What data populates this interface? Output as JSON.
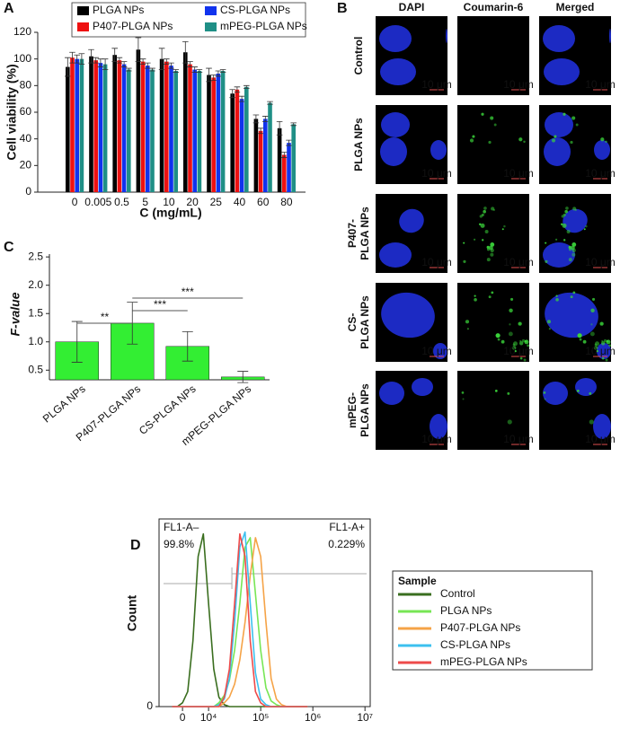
{
  "chart_data": [
    {
      "type": "bar",
      "panel_label": "A",
      "categories": [
        "0",
        "0.005",
        "0.5",
        "5",
        "10",
        "20",
        "25",
        "40",
        "60",
        "80"
      ],
      "series": [
        {
          "name": "PLGA NPs",
          "color": "#000000",
          "values": [
            94,
            102,
            103,
            107,
            100,
            105,
            88,
            74,
            55,
            48
          ],
          "errors": [
            7,
            5,
            5,
            9,
            8,
            8,
            5,
            3,
            3,
            5
          ]
        },
        {
          "name": "P407-PLGA NPs",
          "color": "#ee1111",
          "values": [
            101,
            99,
            99,
            98,
            98,
            96,
            86,
            77,
            46,
            28
          ],
          "errors": [
            4,
            2,
            2,
            2,
            2,
            2,
            2,
            2,
            2,
            2
          ]
        },
        {
          "name": "CS-PLGA NPs",
          "color": "#1133ee",
          "values": [
            100,
            97,
            96,
            95,
            95,
            92,
            89,
            70,
            55,
            37
          ],
          "errors": [
            3,
            3,
            2,
            2,
            2,
            2,
            2,
            2,
            2,
            2
          ]
        },
        {
          "name": "mPEG-PLGA NPs",
          "color": "#1f8f86",
          "values": [
            100,
            96,
            92,
            92,
            91,
            91,
            91,
            79,
            67,
            51
          ],
          "errors": [
            4,
            4,
            1,
            1,
            1,
            1,
            1,
            1,
            1,
            1
          ]
        }
      ],
      "xlabel": "C (mg/mL)",
      "ylabel": "Cell viability (%)",
      "ylim": [
        0,
        120
      ],
      "yticks": [
        0,
        20,
        40,
        60,
        80,
        100,
        120
      ]
    },
    {
      "type": "bar",
      "panel_label": "C",
      "categories": [
        "PLGA NPs",
        "P407-PLGA NPs",
        "CS-PLGA NPs",
        "mPEG-PLGA NPs"
      ],
      "values": [
        1.0,
        1.33,
        0.92,
        0.38
      ],
      "errors": [
        0.36,
        0.37,
        0.26,
        0.1
      ],
      "color": "#33ee33",
      "ylabel": "F-value",
      "ylim": [
        0.33,
        2.55
      ],
      "yticks": [
        0.5,
        {
          "value": 1.0,
          "label": "1.0"
        },
        1.5,
        {
          "value": 2.0,
          "label": "2.0"
        },
        2.5
      ],
      "significance": [
        {
          "label": "**",
          "between": [
            "PLGA NPs",
            "P407-PLGA NPs"
          ]
        },
        {
          "label": "***",
          "between": [
            "P407-PLGA NPs",
            "CS-PLGA NPs"
          ]
        },
        {
          "label": "***",
          "between": [
            "P407-PLGA NPs",
            "mPEG-PLGA NPs"
          ]
        }
      ]
    },
    {
      "type": "line",
      "panel_label": "D",
      "x": [
        -4000,
        -2000,
        0,
        2000,
        4000,
        6000,
        8000,
        10000,
        12600,
        15800,
        20000,
        25100,
        31600,
        39800,
        50100,
        63100,
        79400,
        100000,
        126000,
        158000,
        200000,
        251000,
        316000,
        398000,
        501000,
        631000,
        794000
      ],
      "series": [
        {
          "name": "Control",
          "color": "#3a6e1f",
          "values": [
            0,
            0,
            2,
            8,
            35,
            80,
            92,
            55,
            20,
            5,
            1,
            0,
            0,
            0,
            0,
            0,
            0,
            0,
            0,
            0,
            0,
            0,
            0,
            0,
            0,
            0,
            0
          ]
        },
        {
          "name": "PLGA NPs",
          "color": "#77e655",
          "values": [
            0,
            0,
            0,
            0,
            0,
            0,
            0,
            0,
            0,
            2,
            6,
            14,
            30,
            55,
            85,
            90,
            60,
            30,
            10,
            3,
            1,
            0,
            0,
            0,
            0,
            0,
            0
          ]
        },
        {
          "name": "P407-PLGA NPs",
          "color": "#f5a347",
          "values": [
            0,
            0,
            0,
            0,
            0,
            0,
            0,
            0,
            0,
            0,
            2,
            5,
            12,
            25,
            45,
            70,
            90,
            80,
            45,
            15,
            4,
            1,
            0,
            0,
            0,
            0,
            0
          ]
        },
        {
          "name": "CS-PLGA NPs",
          "color": "#3cc0ef",
          "values": [
            0,
            0,
            0,
            0,
            0,
            0,
            0,
            0,
            0,
            1,
            4,
            15,
            45,
            85,
            93,
            55,
            18,
            4,
            1,
            0,
            0,
            0,
            0,
            0,
            0,
            0,
            0
          ]
        },
        {
          "name": "mPEG-PLGA NPs",
          "color": "#ee4a4a",
          "values": [
            0,
            0,
            0,
            0,
            0,
            0,
            0,
            0,
            0,
            0,
            5,
            20,
            55,
            92,
            80,
            35,
            8,
            2,
            0,
            0,
            0,
            0,
            0,
            0,
            0,
            0,
            0
          ]
        }
      ],
      "legend_title": "Sample",
      "legend": "right",
      "ylabel": "Count",
      "xscale": "symlog",
      "linthresh": 10000,
      "linscale": 0.5,
      "xlim": [
        -9000,
        12600000
      ],
      "xticks": [
        0,
        {
          "value": 10000,
          "label": "10⁴"
        },
        {
          "value": 100000,
          "label": "10⁵"
        },
        {
          "value": 1000000,
          "label": "10⁶"
        },
        {
          "value": 10000000,
          "label": "10⁷"
        }
      ],
      "ylim": [
        0,
        100
      ],
      "yticks": [
        0
      ],
      "gate_threshold": 28000,
      "gates": [
        {
          "name": "FL1-A–",
          "value": 99.8,
          "value_label": "99.8%"
        },
        {
          "name": "FL1-A+",
          "value": 0.229,
          "value_label": "0.229%"
        }
      ]
    }
  ],
  "microscopy": {
    "panel_label": "B",
    "columns": [
      "DAPI",
      "Coumarin-6",
      "Merged"
    ],
    "rows": [
      [
        "Control"
      ],
      [
        "PLGA NPs"
      ],
      [
        "P407-",
        "PLGA NPs"
      ],
      [
        "CS-",
        "PLGA NPs"
      ],
      [
        "mPEG-",
        "PLGA NPs"
      ]
    ],
    "scale_bar": "10 μm"
  }
}
